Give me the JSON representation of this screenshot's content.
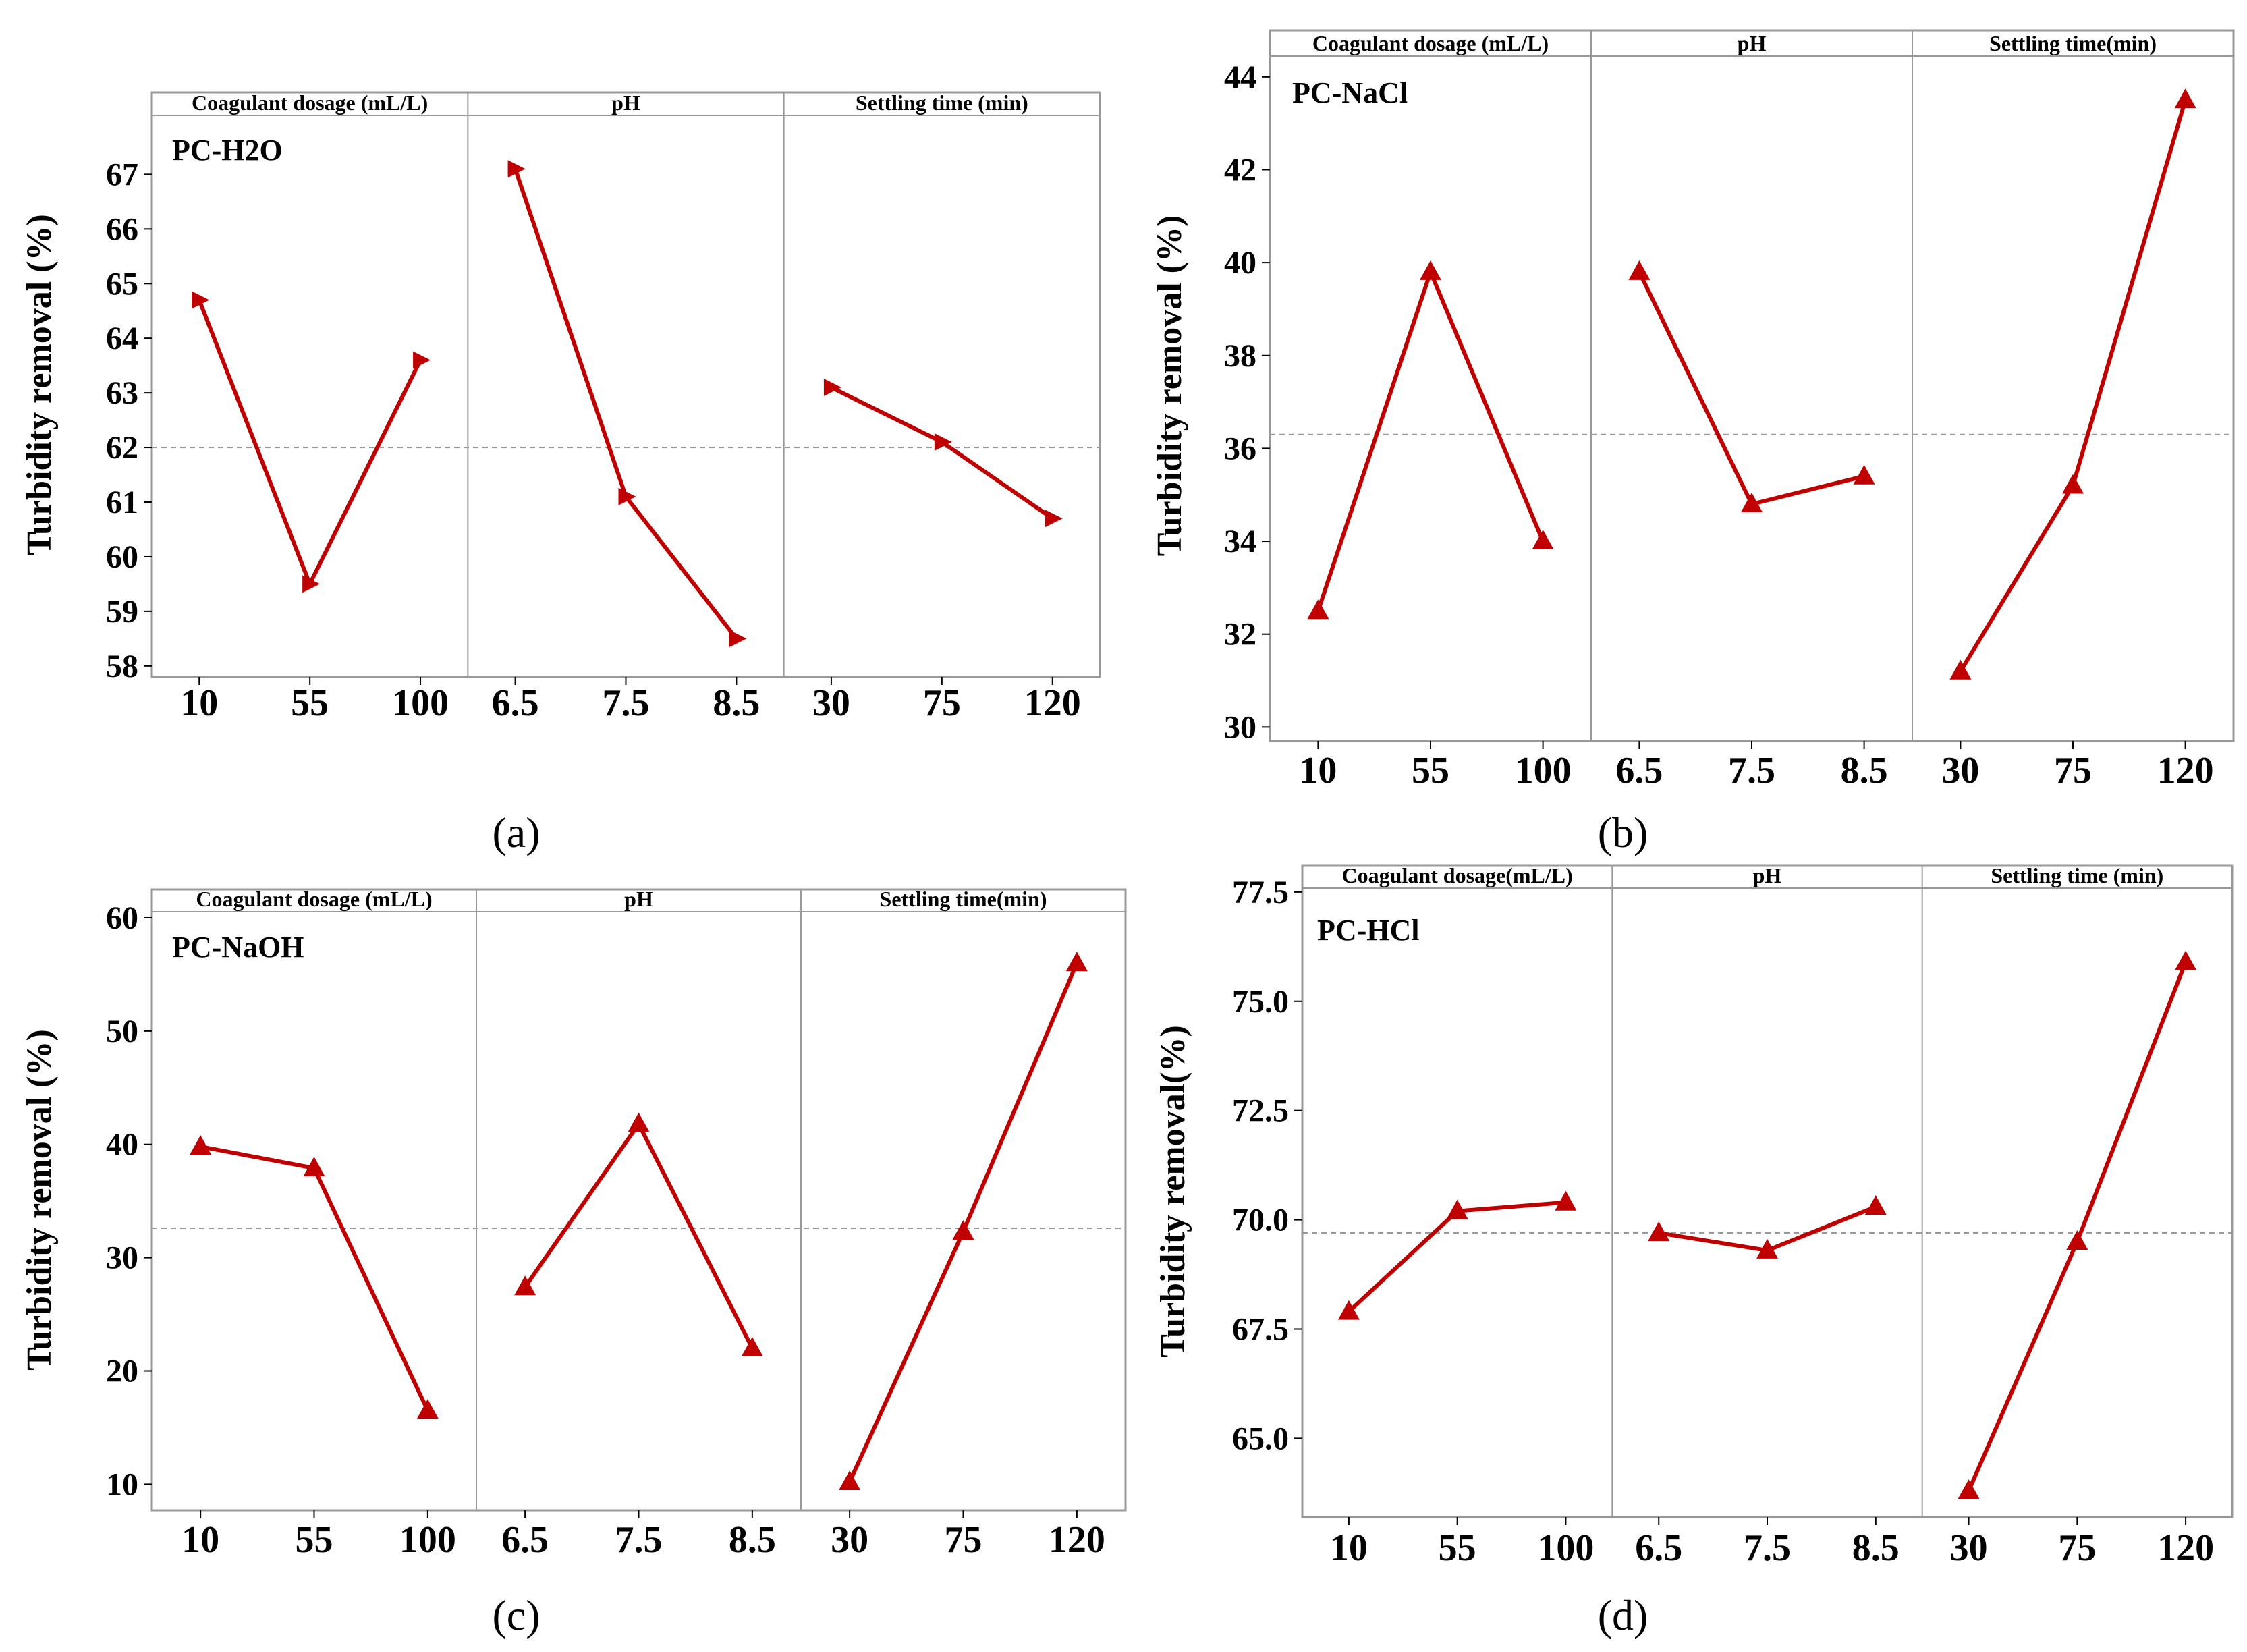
{
  "figure": {
    "panels_count": 4,
    "line_color": "#c00000",
    "mean_line_color": "#999999",
    "frame_color": "#999999"
  },
  "chart_data": [
    {
      "type": "line",
      "panel": "a",
      "caption": "(a)",
      "series_label": "PC-H2O",
      "ylabel": "Turbidity removal (%)",
      "ylim": [
        57.8,
        68.5
      ],
      "yticks": [
        "58",
        "59",
        "60",
        "61",
        "62",
        "63",
        "64",
        "65",
        "66",
        "67"
      ],
      "mean": 62.0,
      "marker": "triangle-right",
      "factors": [
        {
          "name": "Coagulant dosage (mL/L)",
          "levels": [
            "10",
            "55",
            "100"
          ],
          "values": [
            64.7,
            59.5,
            63.6
          ]
        },
        {
          "name": "pH",
          "levels": [
            "6.5",
            "7.5",
            "8.5"
          ],
          "values": [
            67.1,
            61.1,
            58.5
          ]
        },
        {
          "name": "Settling time (min)",
          "levels": [
            "30",
            "75",
            "120"
          ],
          "values": [
            63.1,
            62.1,
            60.7
          ]
        }
      ]
    },
    {
      "type": "line",
      "panel": "b",
      "caption": "(b)",
      "series_label": "PC-NaCl",
      "ylabel": "Turbidity removal (%)",
      "ylim": [
        29.7,
        45.0
      ],
      "yticks": [
        "30",
        "32",
        "34",
        "36",
        "38",
        "40",
        "42",
        "44"
      ],
      "mean": 36.3,
      "marker": "triangle-up",
      "factors": [
        {
          "name": "Coagulant dosage (mL/L)",
          "levels": [
            "10",
            "55",
            "100"
          ],
          "values": [
            32.5,
            39.8,
            34.0
          ]
        },
        {
          "name": "pH",
          "levels": [
            "6.5",
            "7.5",
            "8.5"
          ],
          "values": [
            39.8,
            34.8,
            35.4
          ]
        },
        {
          "name": "Settling time(min)",
          "levels": [
            "30",
            "75",
            "120"
          ],
          "values": [
            31.2,
            35.2,
            43.5
          ]
        }
      ]
    },
    {
      "type": "line",
      "panel": "c",
      "caption": "(c)",
      "series_label": "PC-NaOH",
      "ylabel": "Turbidity removal (%)",
      "ylim": [
        7.7,
        62.5
      ],
      "yticks": [
        "10",
        "20",
        "30",
        "40",
        "50",
        "60"
      ],
      "mean": 32.6,
      "marker": "triangle-up",
      "factors": [
        {
          "name": "Coagulant dosage (mL/L)",
          "levels": [
            "10",
            "55",
            "100"
          ],
          "values": [
            39.8,
            37.9,
            16.5
          ]
        },
        {
          "name": "pH",
          "levels": [
            "6.5",
            "7.5",
            "8.5"
          ],
          "values": [
            27.4,
            41.8,
            22.0
          ]
        },
        {
          "name": "Settling time(min)",
          "levels": [
            "30",
            "75",
            "120"
          ],
          "values": [
            10.2,
            32.3,
            56.0
          ]
        }
      ]
    },
    {
      "type": "line",
      "panel": "d",
      "caption": "(d)",
      "series_label": "PC-HCl",
      "ylabel": "Turbidity removal(%)",
      "ylim": [
        63.2,
        78.1
      ],
      "yticks": [
        "65.0",
        "67.5",
        "70.0",
        "72.5",
        "75.0",
        "77.5"
      ],
      "mean": 69.7,
      "marker": "triangle-up",
      "factors": [
        {
          "name": "Coagulant dosage(mL/L)",
          "levels": [
            "10",
            "55",
            "100"
          ],
          "values": [
            67.9,
            70.2,
            70.4
          ]
        },
        {
          "name": "pH",
          "levels": [
            "6.5",
            "7.5",
            "8.5"
          ],
          "values": [
            69.7,
            69.3,
            70.3
          ]
        },
        {
          "name": "Settling time (min)",
          "levels": [
            "30",
            "75",
            "120"
          ],
          "values": [
            63.8,
            69.5,
            75.9
          ]
        }
      ]
    }
  ]
}
